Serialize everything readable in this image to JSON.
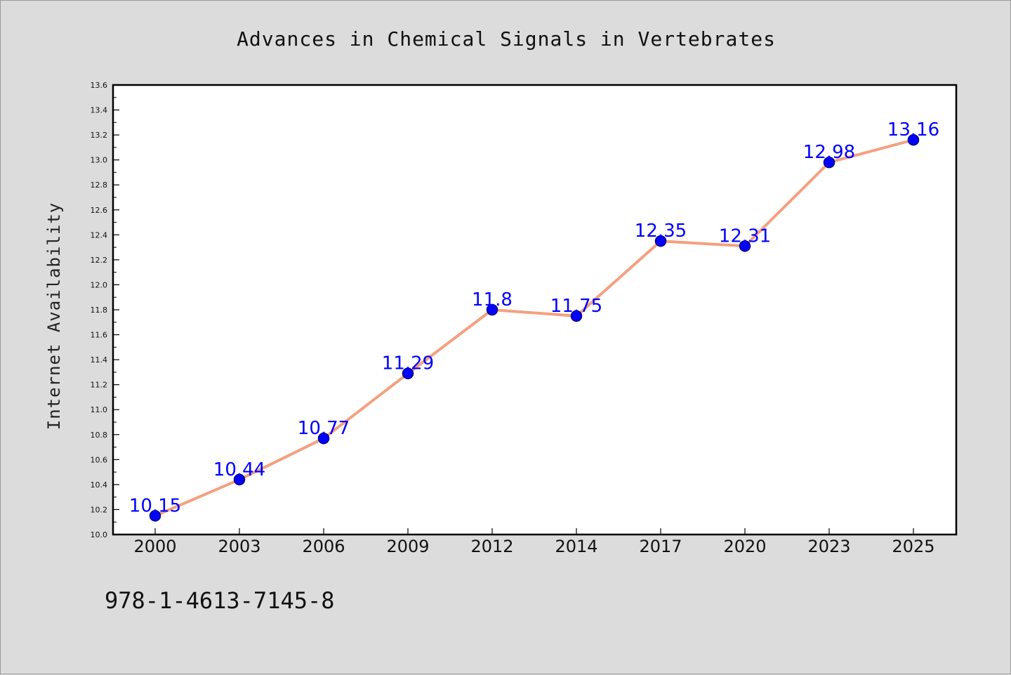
{
  "chart_data": {
    "type": "line",
    "title": "Advances in Chemical Signals in Vertebrates",
    "xlabel": "",
    "ylabel": "Internet Availability",
    "categories": [
      "2000",
      "2003",
      "2006",
      "2009",
      "2012",
      "2014",
      "2017",
      "2020",
      "2023",
      "2025"
    ],
    "series": [
      {
        "values": [
          10.15,
          10.44,
          10.77,
          11.29,
          11.8,
          11.75,
          12.35,
          12.31,
          12.98,
          13.16
        ],
        "data_labels": [
          "10.15",
          "10.44",
          "10.77",
          "11.29",
          "11.8",
          "11.75",
          "12.35",
          "12.31",
          "12.98",
          "13.16"
        ]
      }
    ],
    "ylim": [
      10.0,
      13.6
    ],
    "yticks": [
      "10.0",
      "10.2",
      "10.4",
      "10.6",
      "10.8",
      "11.0",
      "11.2",
      "11.4",
      "11.6",
      "11.8",
      "12.0",
      "12.2",
      "12.4",
      "12.6",
      "12.8",
      "13.0",
      "13.2",
      "13.4",
      "13.6"
    ],
    "grid": false,
    "colors": {
      "line": "#f4a07f",
      "marker": "#0000ff",
      "marker_edge": "#000080",
      "label": "#0000ff"
    }
  },
  "footer": {
    "isbn": "978-1-4613-7145-8"
  }
}
